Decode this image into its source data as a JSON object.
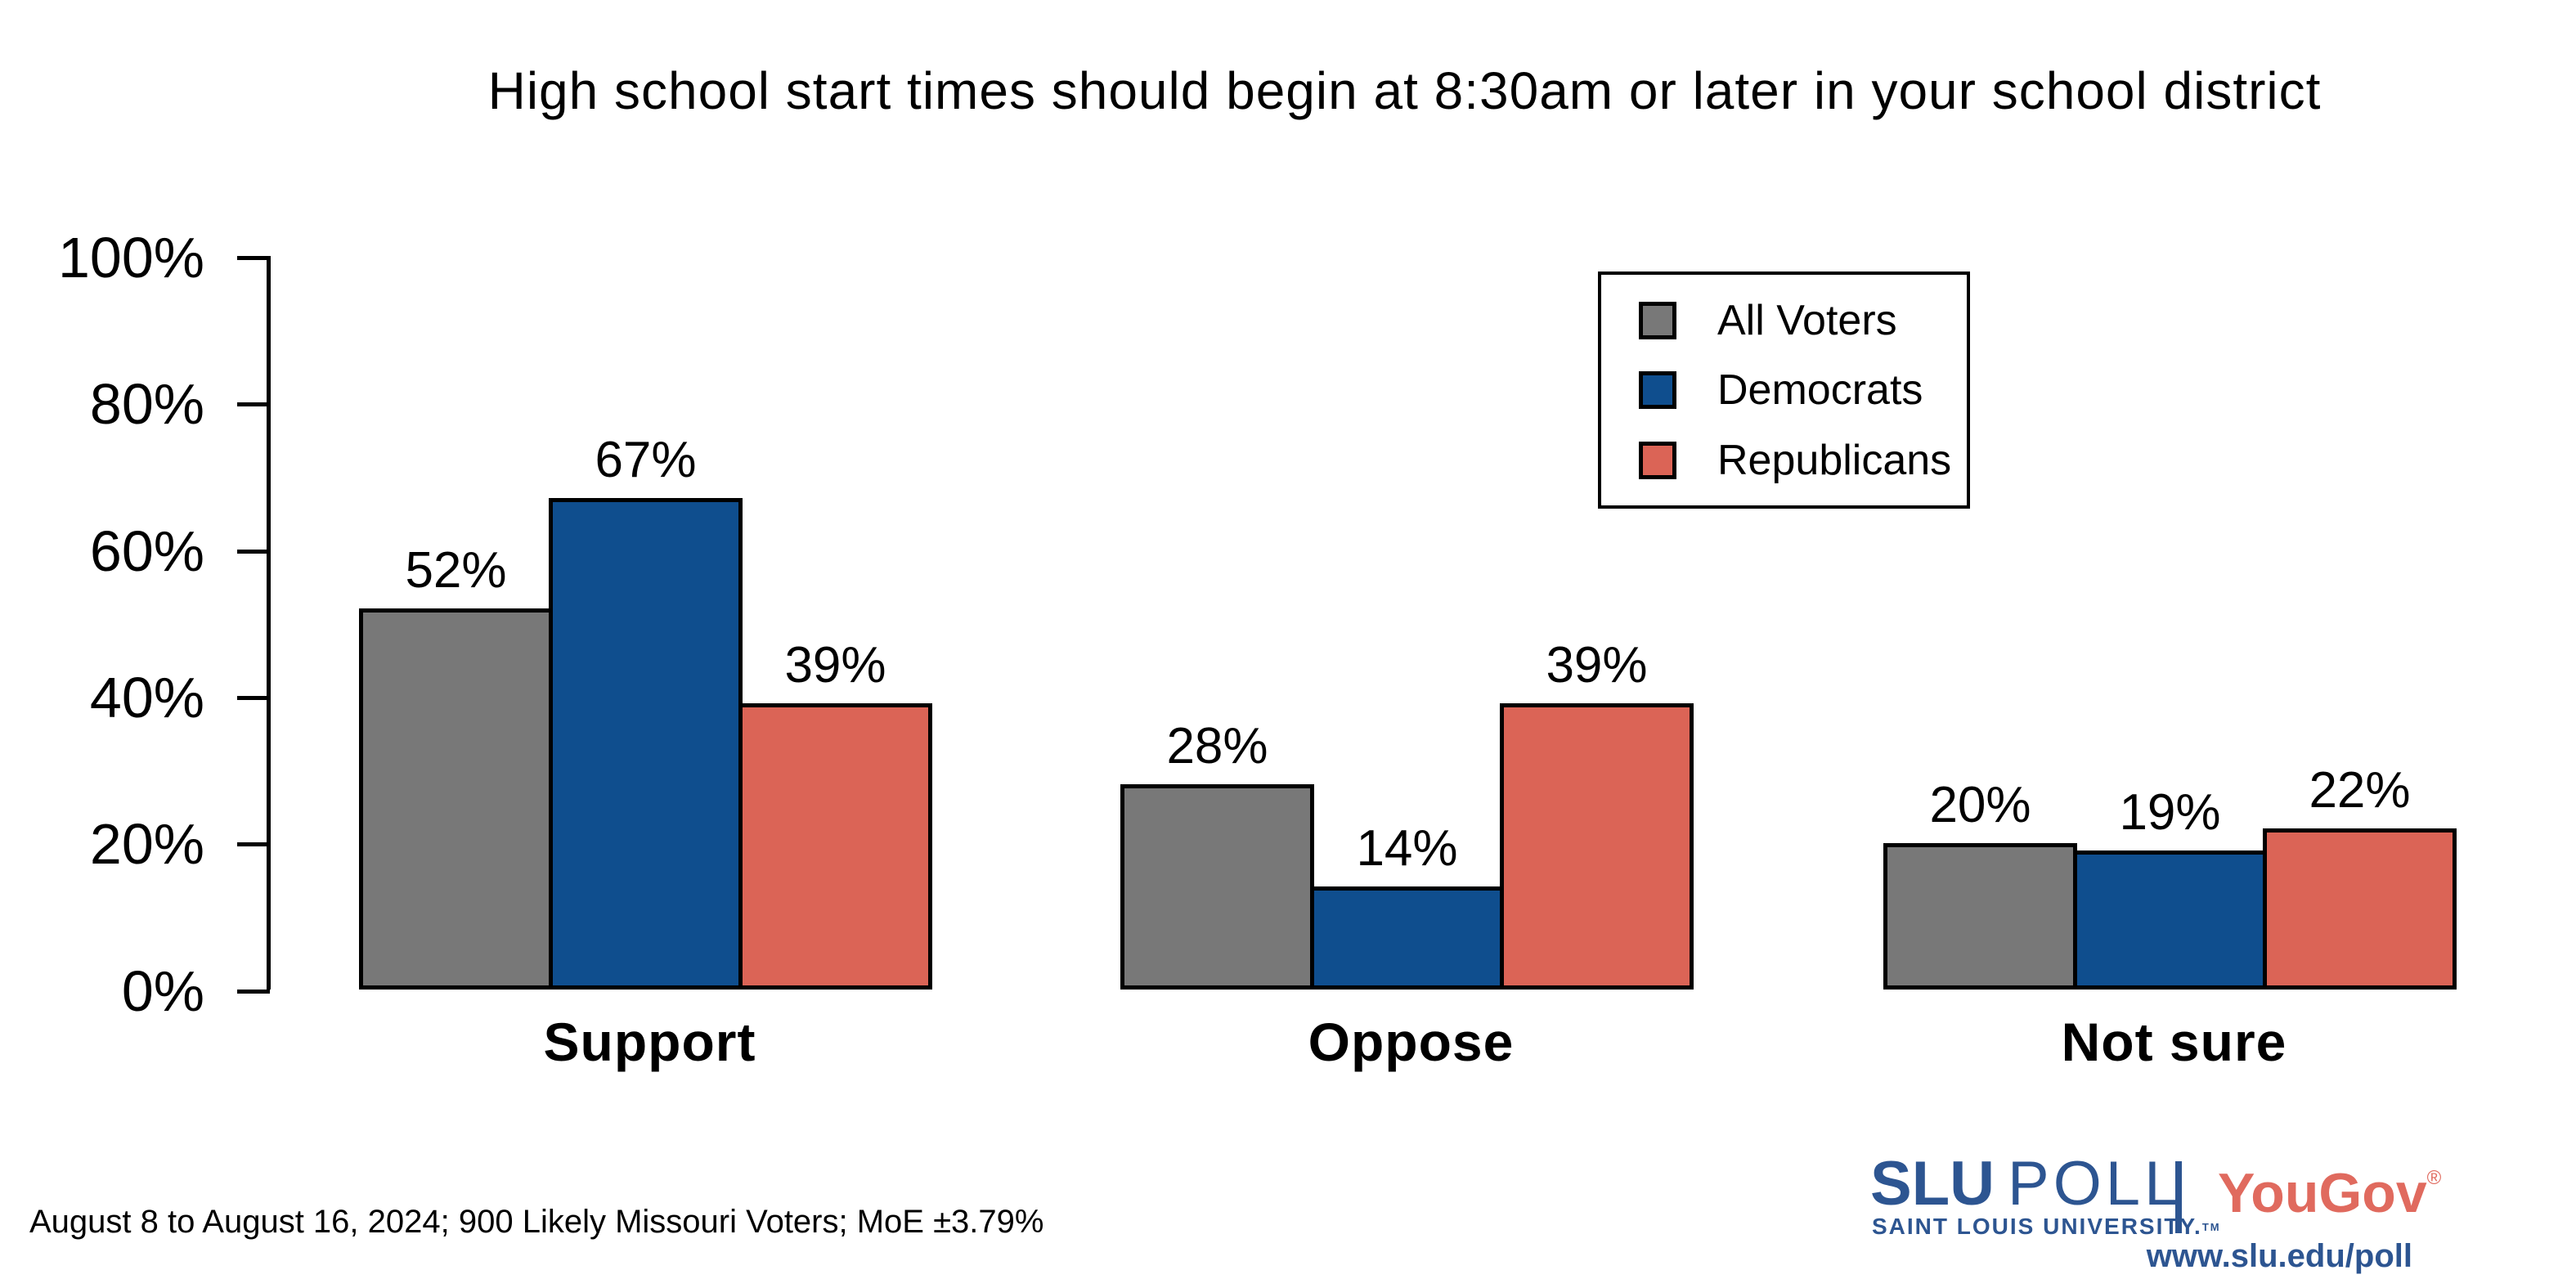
{
  "title": "High school start times should begin at 8:30am or later in your school district",
  "y_axis": {
    "tick_labels": [
      "100%",
      "80%",
      "60%",
      "40%",
      "20%",
      "0%"
    ]
  },
  "legend": {
    "items": [
      {
        "label": "All Voters",
        "color": "#787878"
      },
      {
        "label": "Democrats",
        "color": "#0F4E8E"
      },
      {
        "label": "Republicans",
        "color": "#DB6456"
      }
    ]
  },
  "chart_data": {
    "type": "bar",
    "title": "High school start times should begin at 8:30am or later in your school district",
    "categories": [
      "Support",
      "Oppose",
      "Not sure"
    ],
    "series": [
      {
        "name": "All Voters",
        "color": "#787878",
        "values": [
          52,
          28,
          20
        ]
      },
      {
        "name": "Democrats",
        "color": "#0F4E8E",
        "values": [
          67,
          14,
          19
        ]
      },
      {
        "name": "Republicans",
        "color": "#DB6456",
        "values": [
          39,
          39,
          22
        ]
      }
    ],
    "xlabel": "",
    "ylabel": "",
    "ylim": [
      0,
      100
    ],
    "y_tick_step": 20,
    "value_label_suffix": "%",
    "grid": false,
    "legend_position": "upper right",
    "bar_outline_color": "#000000"
  },
  "footer": {
    "note": "August 8 to August 16, 2024; 900 Likely Missouri Voters; MoE ±3.79%"
  },
  "branding": {
    "slu": "SLU",
    "poll": "POLL",
    "subtitle": "SAINT LOUIS UNIVERSITY.",
    "subtitle_tm": "TM",
    "yougov": "YouGov",
    "yougov_reg": "®",
    "url": "www.slu.edu/poll",
    "slu_blue": "#2D5591",
    "yougov_red": "#E06A5E"
  }
}
